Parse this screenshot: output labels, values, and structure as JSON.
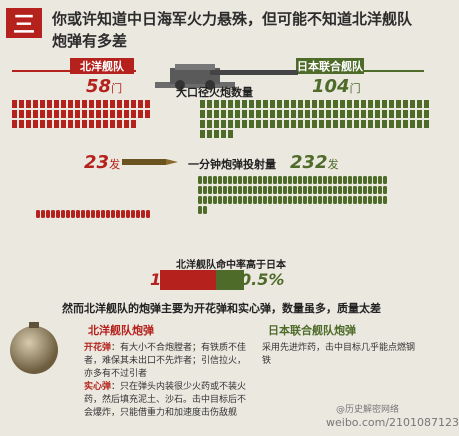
{
  "section_number": "三",
  "title_line1": "你或许知道中日海军火力悬殊，但可能不知道北洋舰队",
  "title_line2": "炮弹有多差",
  "beiyang_label": "北洋舰队",
  "japan_label": "日本联合舰队",
  "beiyang_guns_num": "58",
  "beiyang_guns_unit": "门",
  "japan_guns_num": "104",
  "japan_guns_unit": "门",
  "big_gun_label": "大口径火炮数量",
  "beiyang_shells_num": "23",
  "beiyang_shells_unit": "发",
  "japan_shells_num": "232",
  "japan_shells_unit": "发",
  "shells_label": "一分钟炮弹投射量",
  "hit_rate_label": "北洋舰队命中率高于日本",
  "beiyang_hit": "1%",
  "japan_hit": "0.5%",
  "shell_type_headline": "然而北洋舰队的炮弹主要为开花弹和实心弹，数量虽多，质量太差",
  "beiyang_shell_head": "北洋舰队炮弹",
  "japan_shell_head": "日本联合舰队炮弹",
  "beiyang_shell_desc1_term": "开花弹",
  "beiyang_shell_desc1": "：有大小不合炮膛者；有铁质不佳者，难保其未出口不先炸者；引信拉火，亦多有不过引者",
  "beiyang_shell_desc2_term": "实心弹",
  "beiyang_shell_desc2": "：只在弹头内装很少火药或不装火药，然后填充泥土、沙石。击中目标后不会爆炸，只能借重力和加速度击伤敌舰",
  "japan_shell_desc": "采用先进炸药，击中目标几乎能点燃钢铁",
  "watermark_handle": "@历史解密网络",
  "watermark_url": "weibo.com/2101087123",
  "colors": {
    "beiyang": "#b5221d",
    "japan": "#4e6b29",
    "shell_brass": "#8a6a2c"
  },
  "chart_data": {
    "type": "table",
    "categories": [
      "大口径火炮数量",
      "一分钟炮弹投射量",
      "北洋舰队命中率高于日本"
    ],
    "series": [
      {
        "name": "北洋舰队",
        "values": [
          58,
          23,
          1
        ]
      },
      {
        "name": "日本联合舰队",
        "values": [
          104,
          232,
          0.5
        ]
      }
    ]
  }
}
